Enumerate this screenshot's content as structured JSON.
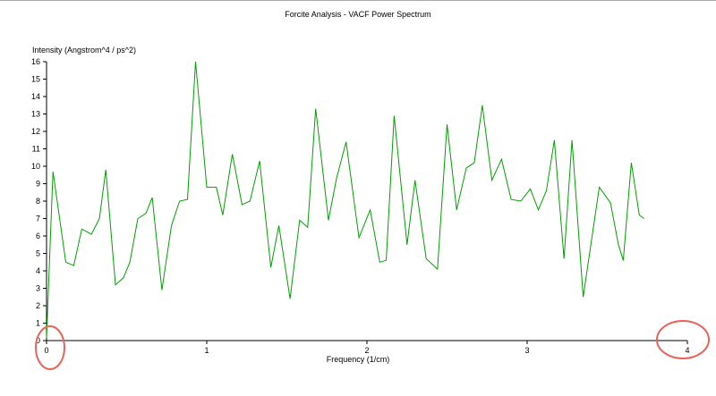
{
  "chart_data": {
    "type": "line",
    "title": "Forcite Analysis - VACF Power Spectrum",
    "xlabel": "Frequency (1/cm)",
    "ylabel": "Intensity (Angstrom^4 / ps^2)",
    "xlim": [
      0,
      4
    ],
    "ylim": [
      0,
      16
    ],
    "xticks": [
      0,
      1,
      2,
      3,
      4
    ],
    "yticks": [
      0,
      1,
      2,
      3,
      4,
      5,
      6,
      7,
      8,
      9,
      10,
      11,
      12,
      13,
      14,
      15,
      16
    ],
    "grid": false,
    "legend": null,
    "line_color": "#00a000",
    "axis_color": "#000000",
    "annotation_color": "#e8635a",
    "series_name": "VACF power spectrum",
    "points": [
      [
        0.0,
        0.15
      ],
      [
        0.04,
        9.7
      ],
      [
        0.12,
        4.5
      ],
      [
        0.17,
        4.3
      ],
      [
        0.22,
        6.4
      ],
      [
        0.28,
        6.1
      ],
      [
        0.33,
        7.0
      ],
      [
        0.37,
        9.8
      ],
      [
        0.43,
        3.2
      ],
      [
        0.48,
        3.6
      ],
      [
        0.52,
        4.5
      ],
      [
        0.57,
        7.0
      ],
      [
        0.62,
        7.3
      ],
      [
        0.66,
        8.2
      ],
      [
        0.72,
        2.9
      ],
      [
        0.78,
        6.6
      ],
      [
        0.83,
        8.0
      ],
      [
        0.88,
        8.1
      ],
      [
        0.93,
        16.0
      ],
      [
        1.0,
        8.8
      ],
      [
        1.06,
        8.8
      ],
      [
        1.1,
        7.2
      ],
      [
        1.16,
        10.7
      ],
      [
        1.22,
        7.8
      ],
      [
        1.27,
        8.0
      ],
      [
        1.33,
        10.3
      ],
      [
        1.4,
        4.2
      ],
      [
        1.45,
        6.6
      ],
      [
        1.52,
        2.4
      ],
      [
        1.58,
        6.9
      ],
      [
        1.63,
        6.5
      ],
      [
        1.68,
        13.3
      ],
      [
        1.76,
        6.9
      ],
      [
        1.81,
        9.3
      ],
      [
        1.87,
        11.4
      ],
      [
        1.95,
        5.9
      ],
      [
        2.02,
        7.5
      ],
      [
        2.08,
        4.5
      ],
      [
        2.12,
        4.6
      ],
      [
        2.17,
        12.9
      ],
      [
        2.25,
        5.5
      ],
      [
        2.3,
        9.2
      ],
      [
        2.37,
        4.7
      ],
      [
        2.44,
        4.1
      ],
      [
        2.5,
        12.4
      ],
      [
        2.56,
        7.5
      ],
      [
        2.62,
        9.9
      ],
      [
        2.67,
        10.2
      ],
      [
        2.72,
        13.5
      ],
      [
        2.78,
        9.2
      ],
      [
        2.84,
        10.4
      ],
      [
        2.9,
        8.1
      ],
      [
        2.96,
        8.0
      ],
      [
        3.02,
        8.7
      ],
      [
        3.07,
        7.5
      ],
      [
        3.12,
        8.6
      ],
      [
        3.17,
        11.5
      ],
      [
        3.23,
        4.7
      ],
      [
        3.28,
        11.5
      ],
      [
        3.35,
        2.5
      ],
      [
        3.45,
        8.8
      ],
      [
        3.52,
        7.9
      ],
      [
        3.57,
        5.5
      ],
      [
        3.6,
        4.6
      ],
      [
        3.65,
        10.2
      ],
      [
        3.7,
        7.2
      ],
      [
        3.73,
        7.0
      ]
    ],
    "annotations": [
      {
        "x_value": 0,
        "label": "0",
        "note": "red ellipse highlighting x-axis start tick"
      },
      {
        "x_value": 4,
        "label": "4",
        "note": "red ellipse highlighting x-axis end tick"
      }
    ]
  }
}
